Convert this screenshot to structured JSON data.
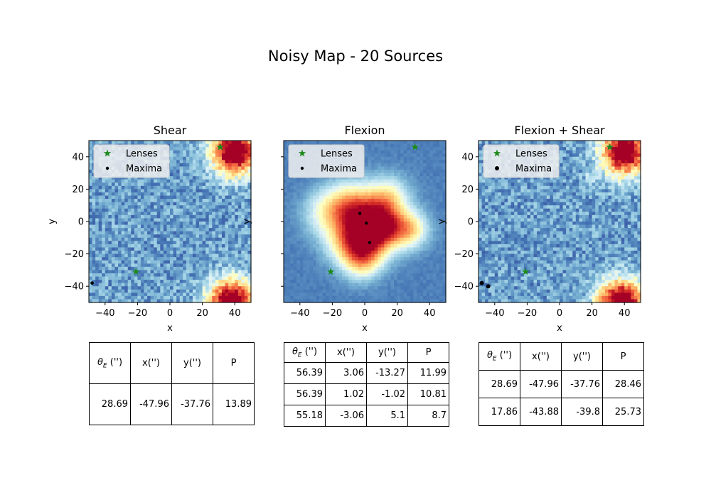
{
  "title": "Noisy Map - 20 Sources",
  "chart_data": [
    {
      "type": "heatmap",
      "title": "Shear",
      "xlabel": "x",
      "ylabel": "y",
      "xlim": [
        -50,
        50
      ],
      "ylim": [
        -50,
        50
      ],
      "xticks": [
        "-40",
        "-20",
        "0",
        "20",
        "40"
      ],
      "yticks": [
        "40",
        "20",
        "0",
        "−20",
        "−40"
      ],
      "colormap": "RdYlBu_r",
      "legend": {
        "placement": "top-left",
        "entries": [
          "Lenses",
          "Maxima"
        ]
      },
      "lenses": [
        {
          "x": 31,
          "y": 46
        },
        {
          "x": -21,
          "y": -31
        }
      ],
      "maxima": [
        {
          "x": -48,
          "y": -38
        }
      ],
      "blobs": [
        {
          "x": 40,
          "y": 43,
          "amp": 1.0,
          "sigma": 10
        },
        {
          "x": 38,
          "y": -50,
          "amp": 1.0,
          "sigma": 10
        }
      ],
      "ridges": [],
      "noise_level": 0.22,
      "background": 0.18,
      "table": {
        "columns": [
          "θ_E ('')",
          "x('')",
          "y('')",
          "P"
        ],
        "rows": [
          [
            "28.69",
            "-47.96",
            "-37.76",
            "13.89"
          ]
        ]
      }
    },
    {
      "type": "heatmap",
      "title": "Flexion",
      "xlabel": "x",
      "ylabel": "y",
      "xlim": [
        -50,
        50
      ],
      "ylim": [
        -50,
        50
      ],
      "xticks": [
        "-40",
        "-20",
        "0",
        "20",
        "40"
      ],
      "yticks": [],
      "colormap": "RdYlBu_r",
      "legend": {
        "placement": "top-left",
        "entries": [
          "Lenses",
          "Maxima"
        ]
      },
      "lenses": [
        {
          "x": 31,
          "y": 46
        },
        {
          "x": -21,
          "y": -31
        }
      ],
      "maxima": [
        {
          "x": -3,
          "y": 5
        },
        {
          "x": 1,
          "y": -1
        },
        {
          "x": 3,
          "y": -13
        }
      ],
      "blobs": [
        {
          "x": 12,
          "y": -3,
          "amp": 0.55,
          "sigma": 9
        },
        {
          "x": 0,
          "y": 5,
          "amp": 0.5,
          "sigma": 11
        },
        {
          "x": -10,
          "y": -12,
          "amp": 0.45,
          "sigma": 10
        },
        {
          "x": 3,
          "y": -13,
          "amp": 0.45,
          "sigma": 10
        },
        {
          "x": 28,
          "y": -5,
          "amp": 0.45,
          "sigma": 8
        },
        {
          "x": -12,
          "y": 10,
          "amp": 0.35,
          "sigma": 10
        },
        {
          "x": 15,
          "y": 15,
          "amp": 0.35,
          "sigma": 9
        },
        {
          "x": -2,
          "y": -25,
          "amp": 0.35,
          "sigma": 8
        },
        {
          "x": -25,
          "y": 5,
          "amp": 0.25,
          "sigma": 10
        }
      ],
      "ridges": [],
      "noise_level": 0.04,
      "background": 0.12,
      "table": {
        "columns": [
          "θ_E ('')",
          "x('')",
          "y('')",
          "P"
        ],
        "rows": [
          [
            "56.39",
            "3.06",
            "-13.27",
            "11.99"
          ],
          [
            "56.39",
            "1.02",
            "-1.02",
            "10.81"
          ],
          [
            "55.18",
            "-3.06",
            "5.1",
            "8.7"
          ]
        ]
      }
    },
    {
      "type": "heatmap",
      "title": "Flexion + Shear",
      "xlabel": "x",
      "ylabel": "y",
      "xlim": [
        -50,
        50
      ],
      "ylim": [
        -50,
        50
      ],
      "xticks": [
        "-40",
        "-20",
        "0",
        "20",
        "40"
      ],
      "yticks": [
        "40",
        "20",
        "0",
        "−20",
        "−40"
      ],
      "colormap": "RdYlBu_r",
      "legend": {
        "placement": "top-left",
        "entries": [
          "Lenses",
          "Maxima"
        ]
      },
      "lenses": [
        {
          "x": 31,
          "y": 46
        },
        {
          "x": -21,
          "y": -31
        }
      ],
      "maxima": [
        {
          "x": -48,
          "y": -38
        },
        {
          "x": -44,
          "y": -40
        }
      ],
      "blobs": [
        {
          "x": 40,
          "y": 43,
          "amp": 1.0,
          "sigma": 10
        },
        {
          "x": 38,
          "y": -50,
          "amp": 1.0,
          "sigma": 10
        },
        {
          "x": 20,
          "y": 27,
          "amp": 0.15,
          "sigma": 3
        }
      ],
      "ridges": [],
      "noise_level": 0.22,
      "background": 0.18,
      "table": {
        "columns": [
          "θ_E ('')",
          "x('')",
          "y('')",
          "P"
        ],
        "rows": [
          [
            "28.69",
            "-47.96",
            "-37.76",
            "28.46"
          ],
          [
            "17.86",
            "-43.88",
            "-39.8",
            "25.73"
          ]
        ]
      }
    }
  ],
  "colors": {
    "lens": "#1e8a1e",
    "maxima": "#000000",
    "legend_bg": "#f0f0f0"
  }
}
